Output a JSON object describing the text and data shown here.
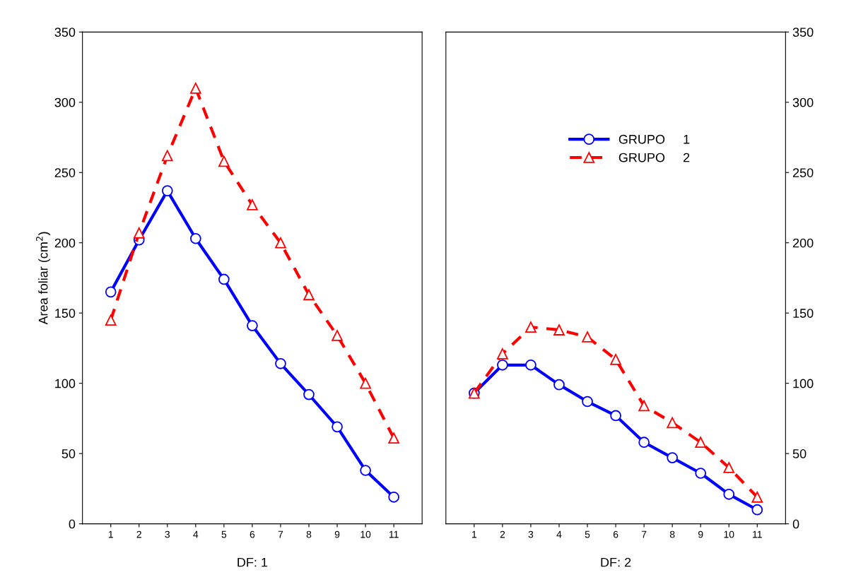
{
  "chart_data": [
    {
      "type": "line",
      "xlabel": "DF: 1",
      "ylabel": "Area foliar (cm$^{2}$)",
      "categories": [
        "1",
        "2",
        "3",
        "4",
        "5",
        "6",
        "7",
        "8",
        "9",
        "10",
        "11"
      ],
      "ylim": [
        0,
        350
      ],
      "yticks": [
        0,
        50,
        100,
        150,
        200,
        250,
        300,
        350
      ],
      "grid": false,
      "legend": false,
      "series": [
        {
          "color": "#0000ff",
          "marker": "circle",
          "line_style": "solid",
          "values": [
            165,
            202,
            237,
            203,
            174,
            141,
            114,
            92,
            69,
            38,
            19
          ]
        },
        {
          "color": "#ff0000",
          "marker": "triangle",
          "line_style": "dashed",
          "values": [
            145,
            207,
            262,
            310,
            258,
            227,
            200,
            163,
            134,
            100,
            61
          ]
        }
      ]
    },
    {
      "type": "line",
      "xlabel": "DF: 2",
      "categories": [
        "1",
        "2",
        "3",
        "4",
        "5",
        "6",
        "7",
        "8",
        "9",
        "10",
        "11"
      ],
      "y2lim": [
        0,
        350
      ],
      "y2ticks": [
        0,
        50,
        100,
        150,
        200,
        250,
        300,
        350
      ],
      "grid": false,
      "legend": "top right",
      "series": [
        {
          "name": "GRUPO     1",
          "axis": "y2",
          "color": "#0000ff",
          "marker": "circle",
          "line_style": "solid",
          "values": [
            93,
            113,
            113,
            99,
            87,
            77,
            58,
            47,
            36,
            21,
            10
          ]
        },
        {
          "name": "GRUPO     2",
          "axis": "y2",
          "color": "#ff0000",
          "marker": "triangle",
          "line_style": "dashed",
          "values": [
            93,
            121,
            140,
            138,
            133,
            117,
            84,
            72,
            58,
            40,
            19
          ]
        }
      ]
    }
  ]
}
